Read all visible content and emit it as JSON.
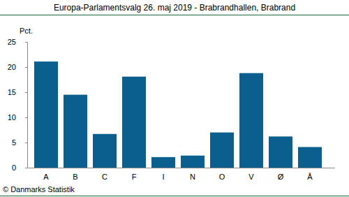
{
  "chart_data": {
    "type": "bar",
    "title": "Europa-Parlamentsvalg 26. maj 2019 - Brabrandhallen, Brabrand",
    "y_label": "Pct.",
    "source": "© Danmarks Statistik",
    "categories": [
      "A",
      "B",
      "C",
      "F",
      "I",
      "N",
      "O",
      "V",
      "Ø",
      "Å"
    ],
    "values": [
      21.1,
      14.5,
      6.7,
      18.1,
      2.1,
      2.4,
      7.0,
      18.8,
      6.2,
      4.1
    ],
    "color": "#0a5f8e",
    "ylim": [
      0,
      25
    ],
    "yticks": [
      0,
      5,
      10,
      15,
      20,
      25
    ],
    "grid": false
  }
}
